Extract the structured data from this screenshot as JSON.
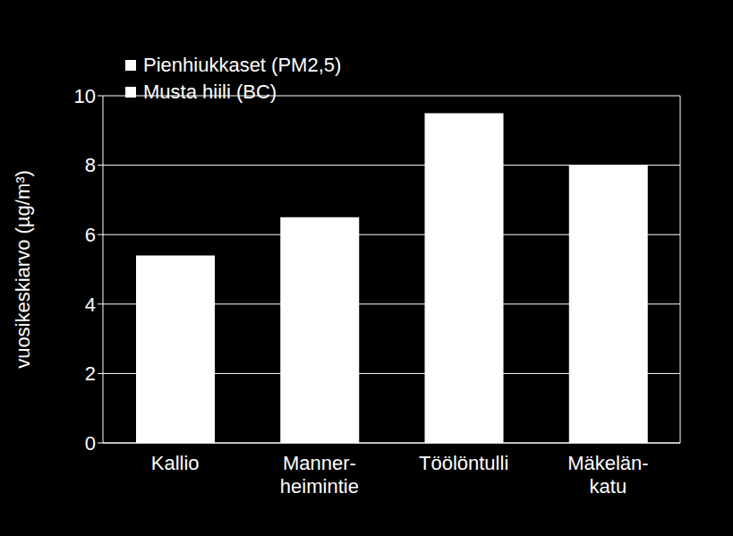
{
  "chart_data": {
    "type": "bar",
    "y_label": "vuosikeskiarvo (µg/m³)",
    "categories": [
      "Kallio",
      "Manner-\nheimintie",
      "Töölöntulli",
      "Mäkelän-\nkatu"
    ],
    "series": [
      {
        "name": "Pienhiukkaset (PM2,5)",
        "color": "#ffffff",
        "values": [
          5.4,
          6.5,
          9.5,
          8.0
        ]
      },
      {
        "name": "Musta hiili (BC)",
        "color": "#ffffff",
        "values": [
          null,
          null,
          null,
          null
        ]
      }
    ],
    "ylim": [
      0,
      10
    ],
    "yticks": [
      0,
      2,
      4,
      6,
      8,
      10
    ],
    "grid": true,
    "legend": "top-left"
  }
}
